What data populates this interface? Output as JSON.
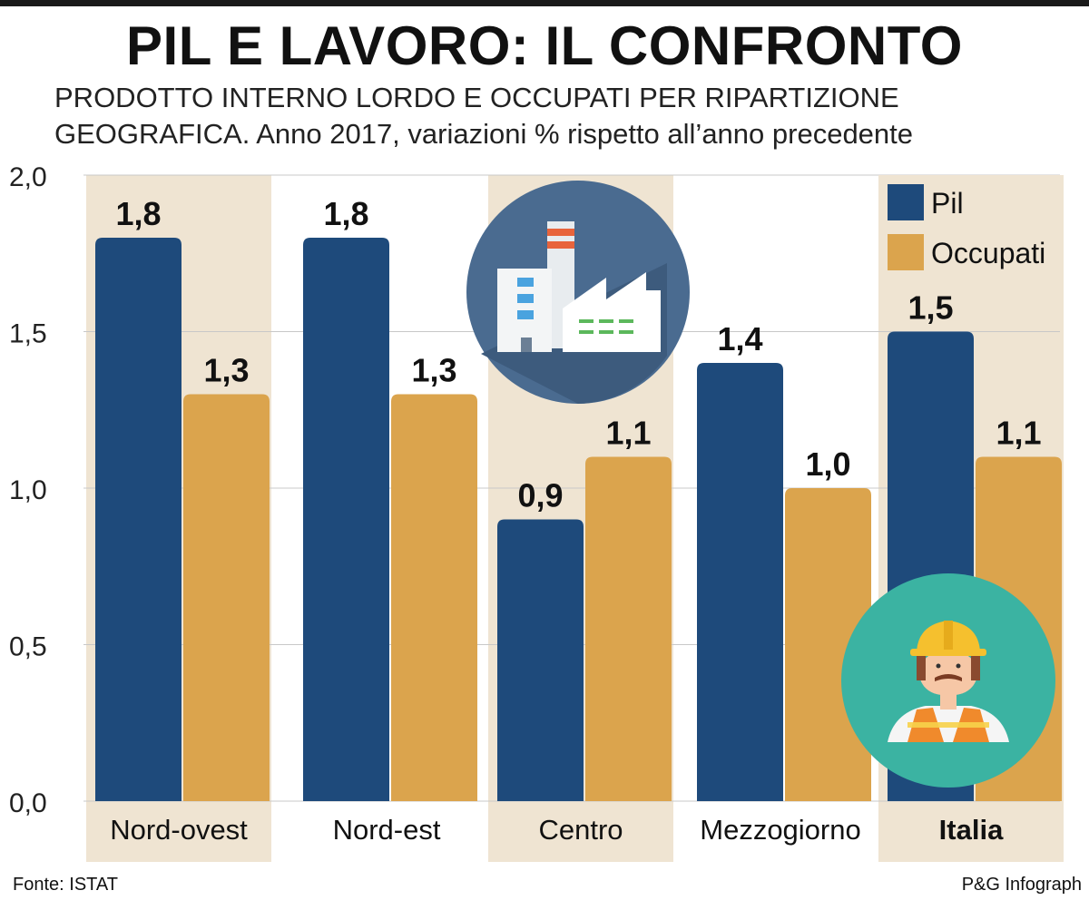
{
  "title": "PIL E LAVORO: IL CONFRONTO",
  "subtitle_line1": "PRODOTTO INTERNO LORDO E OCCUPATI PER RIPARTIZIONE",
  "subtitle_line2": "GEOGRAFICA. Anno 2017, variazioni % rispetto all’anno precedente",
  "source": "Fonte: ISTAT",
  "credit": "P&G Infograph",
  "colors": {
    "pil": "#1e4a7b",
    "occupati": "#dba44d",
    "band": "#efe4d2",
    "grid": "#c8c8c8"
  },
  "icons": [
    "factory-icon",
    "worker-icon"
  ],
  "chart_data": {
    "type": "bar",
    "categories": [
      "Nord-ovest",
      "Nord-est",
      "Centro",
      "Mezzogiorno",
      "Italia"
    ],
    "series": [
      {
        "name": "Pil",
        "values": [
          1.8,
          1.8,
          0.9,
          1.4,
          1.5
        ],
        "labels": [
          "1,8",
          "1,8",
          "0,9",
          "1,4",
          "1,5"
        ]
      },
      {
        "name": "Occupati",
        "values": [
          1.3,
          1.3,
          1.1,
          1.0,
          1.1
        ],
        "labels": [
          "1,3",
          "1,3",
          "1,1",
          "1,0",
          "1,1"
        ]
      }
    ],
    "yticks": [
      {
        "value": 0.0,
        "label": "0,0"
      },
      {
        "value": 0.5,
        "label": "0,5"
      },
      {
        "value": 1.0,
        "label": "1,0"
      },
      {
        "value": 1.5,
        "label": "1,5"
      },
      {
        "value": 2.0,
        "label": "2,0"
      }
    ],
    "ylim": [
      0,
      2
    ],
    "grid": true,
    "legend": "top-right",
    "bold_category": "Italia"
  }
}
